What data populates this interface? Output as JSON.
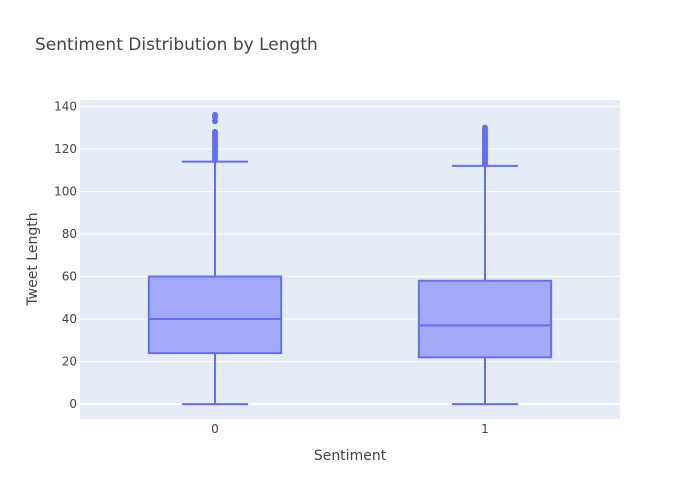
{
  "chart_data": {
    "type": "box",
    "title": "Sentiment Distribution by Length",
    "xlabel": "Sentiment",
    "ylabel": "Tweet Length",
    "categories": [
      "0",
      "1"
    ],
    "ylim": [
      -7,
      143
    ],
    "yticks": [
      0,
      20,
      40,
      60,
      80,
      100,
      120,
      140
    ],
    "grid": true,
    "legend": "none",
    "series": [
      {
        "category": "0",
        "min": 0,
        "q1": 24,
        "median": 40,
        "q3": 60,
        "upper_fence": 114,
        "outliers": [
          115,
          116,
          117,
          118,
          119,
          120,
          121,
          122,
          123,
          124,
          125,
          126,
          127,
          128,
          133,
          135,
          136
        ]
      },
      {
        "category": "1",
        "min": 0,
        "q1": 22,
        "median": 37,
        "q3": 58,
        "upper_fence": 112,
        "outliers": [
          113,
          114,
          115,
          116,
          117,
          118,
          119,
          120,
          121,
          122,
          123,
          124,
          125,
          126,
          127,
          128,
          129,
          130
        ]
      }
    ],
    "colors": {
      "box_line": "#636efa",
      "box_fill": "#a3a8f9",
      "plot_bg": "#e5ecf6",
      "grid": "#ffffff"
    }
  }
}
